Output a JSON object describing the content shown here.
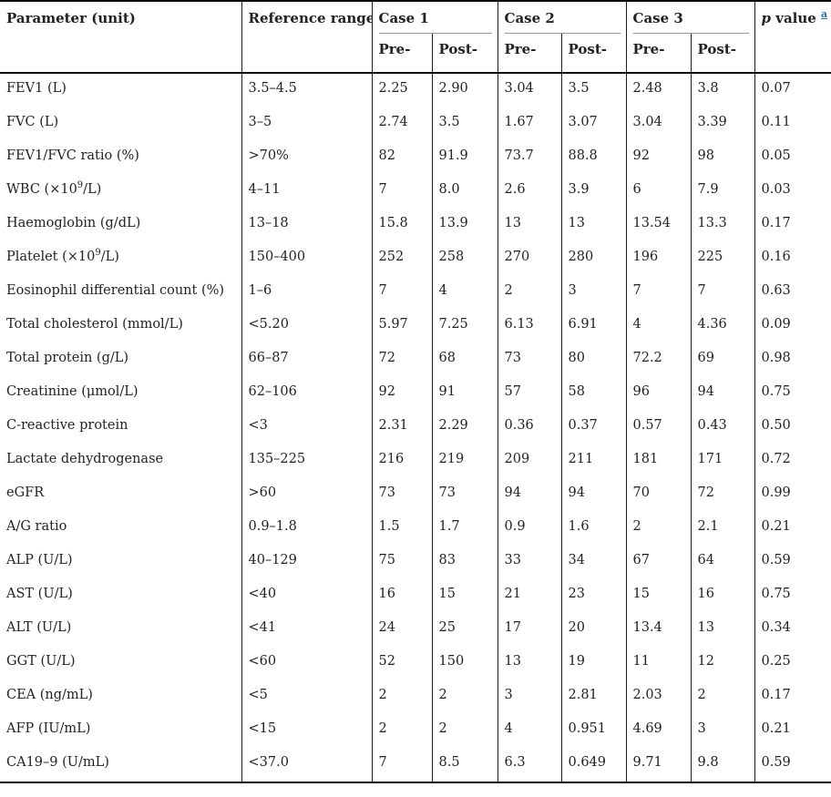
{
  "colors": {
    "text": "#222222",
    "rule": "#1a1a1a",
    "case_underline": "#999999",
    "footnote_link": "#2e6fa8"
  },
  "table": {
    "header": {
      "parameter": "Parameter (unit)",
      "reference": "Reference range",
      "case1": "Case 1",
      "case2": "Case 2",
      "case3": "Case 3",
      "pre": "Pre-",
      "post": "Post-",
      "p_italic": "p",
      "p_rest": " value",
      "p_sup": "a"
    },
    "rows": [
      {
        "param": "FEV1 (L)",
        "param_sup": "",
        "param_rest": "",
        "ref": "3.5–4.5",
        "c1_pre": "2.25",
        "c1_post": "2.90",
        "c2_pre": "3.04",
        "c2_post": "3.5",
        "c3_pre": "2.48",
        "c3_post": "3.8",
        "p": "0.07"
      },
      {
        "param": "FVC (L)",
        "param_sup": "",
        "param_rest": "",
        "ref": "3–5",
        "c1_pre": "2.74",
        "c1_post": "3.5",
        "c2_pre": "1.67",
        "c2_post": "3.07",
        "c3_pre": "3.04",
        "c3_post": "3.39",
        "p": "0.11"
      },
      {
        "param": "FEV1/FVC ratio (%)",
        "param_sup": "",
        "param_rest": "",
        "ref": ">70%",
        "c1_pre": "82",
        "c1_post": "91.9",
        "c2_pre": "73.7",
        "c2_post": "88.8",
        "c3_pre": "92",
        "c3_post": "98",
        "p": "0.05"
      },
      {
        "param": "WBC (×10",
        "param_sup": "9",
        "param_rest": "/L)",
        "ref": "4–11",
        "c1_pre": "7",
        "c1_post": "8.0",
        "c2_pre": "2.6",
        "c2_post": "3.9",
        "c3_pre": "6",
        "c3_post": "7.9",
        "p": "0.03"
      },
      {
        "param": "Haemoglobin (g/dL)",
        "param_sup": "",
        "param_rest": "",
        "ref": "13–18",
        "c1_pre": "15.8",
        "c1_post": "13.9",
        "c2_pre": "13",
        "c2_post": "13",
        "c3_pre": "13.54",
        "c3_post": "13.3",
        "p": "0.17"
      },
      {
        "param": "Platelet (×10",
        "param_sup": "9",
        "param_rest": "/L)",
        "ref": "150–400",
        "c1_pre": "252",
        "c1_post": "258",
        "c2_pre": "270",
        "c2_post": "280",
        "c3_pre": "196",
        "c3_post": "225",
        "p": "0.16"
      },
      {
        "param": "Eosinophil differential count (%)",
        "param_sup": "",
        "param_rest": "",
        "ref": "1–6",
        "c1_pre": "7",
        "c1_post": "4",
        "c2_pre": "2",
        "c2_post": "3",
        "c3_pre": "7",
        "c3_post": "7",
        "p": "0.63"
      },
      {
        "param": "Total cholesterol (mmol/L)",
        "param_sup": "",
        "param_rest": "",
        "ref": "<5.20",
        "c1_pre": "5.97",
        "c1_post": "7.25",
        "c2_pre": "6.13",
        "c2_post": "6.91",
        "c3_pre": "4",
        "c3_post": "4.36",
        "p": "0.09"
      },
      {
        "param": "Total protein (g/L)",
        "param_sup": "",
        "param_rest": "",
        "ref": "66–87",
        "c1_pre": "72",
        "c1_post": "68",
        "c2_pre": "73",
        "c2_post": "80",
        "c3_pre": "72.2",
        "c3_post": "69",
        "p": "0.98"
      },
      {
        "param": "Creatinine (μmol/L)",
        "param_sup": "",
        "param_rest": "",
        "ref": "62–106",
        "c1_pre": "92",
        "c1_post": "91",
        "c2_pre": "57",
        "c2_post": "58",
        "c3_pre": "96",
        "c3_post": "94",
        "p": "0.75"
      },
      {
        "param": "C-reactive protein",
        "param_sup": "",
        "param_rest": "",
        "ref": "<3",
        "c1_pre": "2.31",
        "c1_post": "2.29",
        "c2_pre": "0.36",
        "c2_post": "0.37",
        "c3_pre": "0.57",
        "c3_post": "0.43",
        "p": "0.50"
      },
      {
        "param": "Lactate dehydrogenase",
        "param_sup": "",
        "param_rest": "",
        "ref": "135–225",
        "c1_pre": "216",
        "c1_post": "219",
        "c2_pre": "209",
        "c2_post": "211",
        "c3_pre": "181",
        "c3_post": "171",
        "p": "0.72"
      },
      {
        "param": "eGFR",
        "param_sup": "",
        "param_rest": "",
        "ref": ">60",
        "c1_pre": "73",
        "c1_post": "73",
        "c2_pre": "94",
        "c2_post": "94",
        "c3_pre": "70",
        "c3_post": "72",
        "p": "0.99"
      },
      {
        "param": "A/G ratio",
        "param_sup": "",
        "param_rest": "",
        "ref": "0.9–1.8",
        "c1_pre": "1.5",
        "c1_post": "1.7",
        "c2_pre": "0.9",
        "c2_post": "1.6",
        "c3_pre": "2",
        "c3_post": "2.1",
        "p": "0.21"
      },
      {
        "param": "ALP (U/L)",
        "param_sup": "",
        "param_rest": "",
        "ref": "40–129",
        "c1_pre": "75",
        "c1_post": "83",
        "c2_pre": "33",
        "c2_post": "34",
        "c3_pre": "67",
        "c3_post": "64",
        "p": "0.59"
      },
      {
        "param": "AST (U/L)",
        "param_sup": "",
        "param_rest": "",
        "ref": "<40",
        "c1_pre": "16",
        "c1_post": "15",
        "c2_pre": "21",
        "c2_post": "23",
        "c3_pre": "15",
        "c3_post": "16",
        "p": "0.75"
      },
      {
        "param": "ALT (U/L)",
        "param_sup": "",
        "param_rest": "",
        "ref": "<41",
        "c1_pre": "24",
        "c1_post": "25",
        "c2_pre": "17",
        "c2_post": "20",
        "c3_pre": "13.4",
        "c3_post": "13",
        "p": "0.34"
      },
      {
        "param": "GGT (U/L)",
        "param_sup": "",
        "param_rest": "",
        "ref": "<60",
        "c1_pre": "52",
        "c1_post": "150",
        "c2_pre": "13",
        "c2_post": "19",
        "c3_pre": "11",
        "c3_post": "12",
        "p": "0.25"
      },
      {
        "param": "CEA (ng/mL)",
        "param_sup": "",
        "param_rest": "",
        "ref": "<5",
        "c1_pre": "2",
        "c1_post": "2",
        "c2_pre": "3",
        "c2_post": "2.81",
        "c3_pre": "2.03",
        "c3_post": "2",
        "p": "0.17"
      },
      {
        "param": "AFP (IU/mL)",
        "param_sup": "",
        "param_rest": "",
        "ref": "<15",
        "c1_pre": "2",
        "c1_post": "2",
        "c2_pre": "4",
        "c2_post": "0.951",
        "c3_pre": "4.69",
        "c3_post": "3",
        "p": "0.21"
      },
      {
        "param": "CA19–9 (U/mL)",
        "param_sup": "",
        "param_rest": "",
        "ref": "<37.0",
        "c1_pre": "7",
        "c1_post": "8.5",
        "c2_pre": "6.3",
        "c2_post": "0.649",
        "c3_pre": "9.71",
        "c3_post": "9.8",
        "p": "0.59"
      }
    ]
  }
}
